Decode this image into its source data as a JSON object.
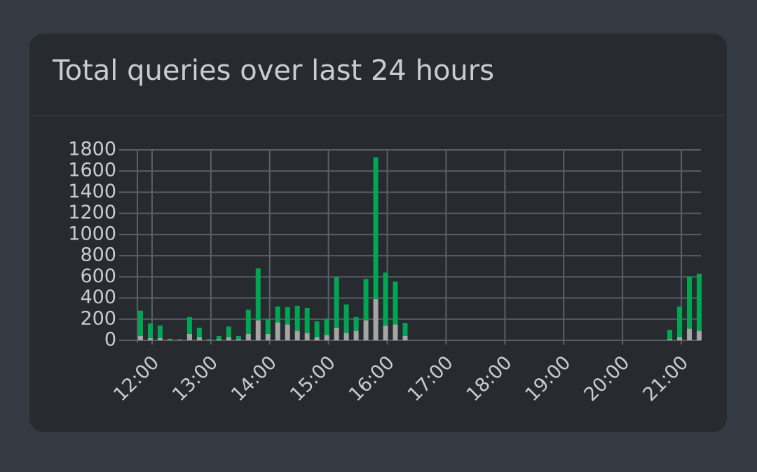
{
  "title": "Total queries over last 24 hours",
  "chart_data": {
    "type": "stacked-bar",
    "x": [
      "11:45",
      "11:55",
      "12:05",
      "12:15",
      "12:25",
      "12:35",
      "12:45",
      "12:55",
      "13:05",
      "13:15",
      "13:25",
      "13:35",
      "13:45",
      "13:55",
      "14:05",
      "14:15",
      "14:25",
      "14:35",
      "14:45",
      "14:55",
      "15:05",
      "15:15",
      "15:25",
      "15:35",
      "15:45",
      "15:55",
      "16:05",
      "16:15",
      "20:45",
      "20:55",
      "21:05",
      "21:15"
    ],
    "series": [
      {
        "color": "#a5a5a5",
        "values": [
          40,
          20,
          20,
          5,
          5,
          60,
          30,
          5,
          10,
          30,
          10,
          60,
          190,
          60,
          170,
          150,
          90,
          70,
          30,
          50,
          120,
          70,
          90,
          190,
          390,
          140,
          150,
          40,
          10,
          30,
          110,
          90
        ]
      },
      {
        "color": "#00a651",
        "values": [
          240,
          140,
          120,
          10,
          5,
          160,
          90,
          5,
          30,
          100,
          30,
          230,
          490,
          140,
          150,
          165,
          235,
          235,
          150,
          155,
          475,
          270,
          130,
          390,
          1340,
          500,
          405,
          125,
          90,
          290,
          495,
          540
        ]
      }
    ],
    "xlim": [
      "11:45",
      "21:20"
    ],
    "xticks": [
      "12:00",
      "13:00",
      "14:00",
      "15:00",
      "16:00",
      "17:00",
      "18:00",
      "19:00",
      "20:00",
      "21:00"
    ],
    "ylim": [
      0,
      1800
    ],
    "yticks": [
      0,
      200,
      400,
      600,
      800,
      1000,
      1200,
      1400,
      1600,
      1800
    ],
    "grid": true
  }
}
